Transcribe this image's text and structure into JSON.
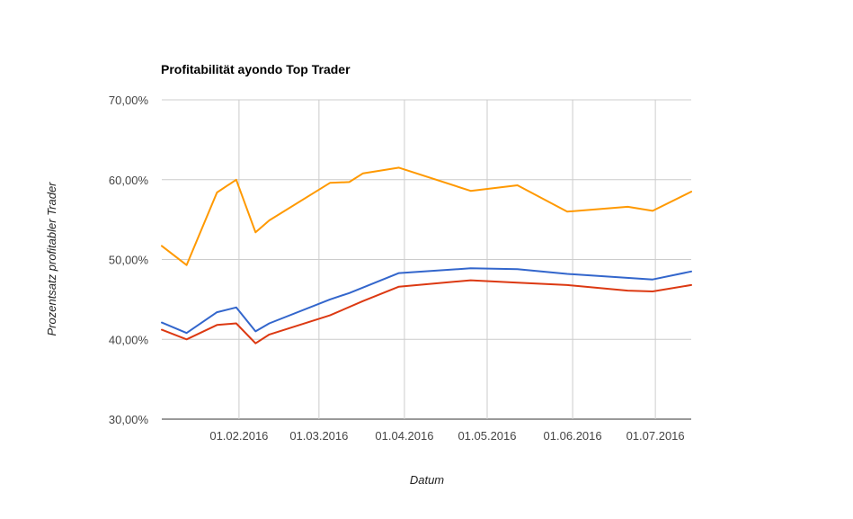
{
  "chart_data": {
    "type": "line",
    "title": "Profitabilität ayondo Top Trader",
    "xlabel": "Datum",
    "ylabel": "Prozentsatz profitabler Trader",
    "x_type": "date",
    "xlim": [
      "2016-01-04",
      "2016-07-14"
    ],
    "ylim": [
      30,
      70
    ],
    "y_ticks": [
      30,
      40,
      50,
      60,
      70
    ],
    "y_tick_labels": [
      "30,00%",
      "40,00%",
      "50,00%",
      "60,00%",
      "70,00%"
    ],
    "x_ticks": [
      "2016-02-01",
      "2016-03-01",
      "2016-04-01",
      "2016-05-01",
      "2016-06-01",
      "2016-07-01"
    ],
    "x_tick_labels": [
      "01.02.2016",
      "01.03.2016",
      "01.04.2016",
      "01.05.2016",
      "01.06.2016",
      "01.07.2016"
    ],
    "grid": true,
    "legend": "none",
    "series": [
      {
        "color": "#ff9900",
        "x": [
          "2016-01-04",
          "2016-01-13",
          "2016-01-24",
          "2016-01-31",
          "2016-02-07",
          "2016-02-12",
          "2016-03-05",
          "2016-03-12",
          "2016-03-17",
          "2016-03-30",
          "2016-04-25",
          "2016-05-12",
          "2016-05-30",
          "2016-06-21",
          "2016-06-30",
          "2016-07-14"
        ],
        "values": [
          51.7,
          49.3,
          58.4,
          60.0,
          53.4,
          54.9,
          59.6,
          59.7,
          60.8,
          61.5,
          58.6,
          59.3,
          56.0,
          56.6,
          56.1,
          58.5
        ]
      },
      {
        "color": "#3366cc",
        "x": [
          "2016-01-04",
          "2016-01-13",
          "2016-01-24",
          "2016-01-31",
          "2016-02-07",
          "2016-02-12",
          "2016-03-05",
          "2016-03-12",
          "2016-03-30",
          "2016-04-25",
          "2016-05-12",
          "2016-05-30",
          "2016-06-30",
          "2016-07-14"
        ],
        "values": [
          42.1,
          40.8,
          43.4,
          44.0,
          41.0,
          42.0,
          45.0,
          45.8,
          48.3,
          48.9,
          48.8,
          48.2,
          47.5,
          48.5
        ]
      },
      {
        "color": "#dc3912",
        "x": [
          "2016-01-04",
          "2016-01-13",
          "2016-01-24",
          "2016-01-31",
          "2016-02-07",
          "2016-02-12",
          "2016-03-05",
          "2016-03-17",
          "2016-03-30",
          "2016-04-25",
          "2016-05-12",
          "2016-05-30",
          "2016-06-21",
          "2016-06-30",
          "2016-07-14"
        ],
        "values": [
          41.2,
          40.0,
          41.8,
          42.0,
          39.5,
          40.6,
          43.0,
          44.8,
          46.6,
          47.4,
          47.1,
          46.8,
          46.1,
          46.0,
          46.8
        ]
      }
    ]
  }
}
